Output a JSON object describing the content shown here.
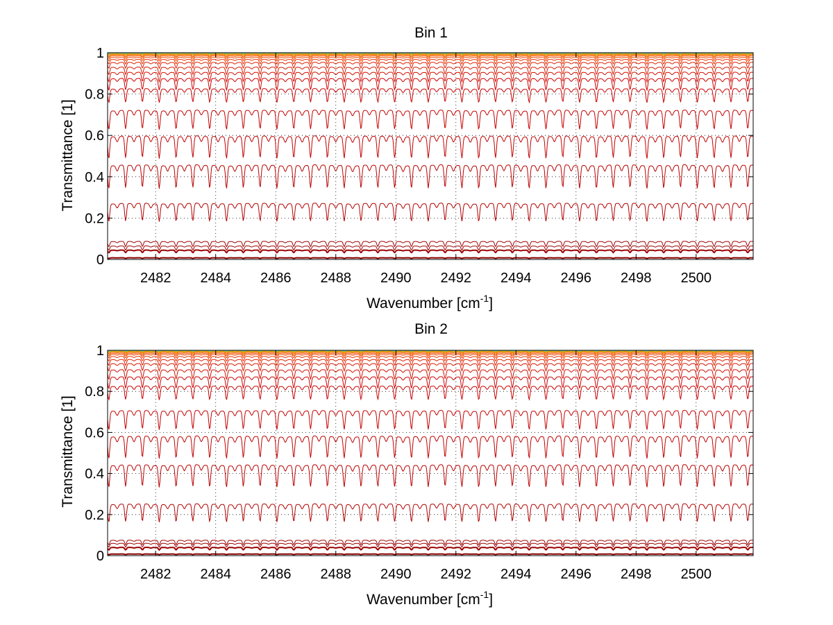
{
  "chart_data": [
    {
      "type": "line",
      "title": "Bin 1",
      "xlabel": "Wavenumber [cm",
      "xlabel_sup": "-1",
      "xlabel_end": "]",
      "ylabel": "Transmittance [1]",
      "xlim": [
        2480.4,
        2501.9
      ],
      "ylim": [
        0,
        1
      ],
      "grid": true,
      "x_ticks": [
        "2482",
        "2484",
        "2486",
        "2488",
        "2490",
        "2492",
        "2494",
        "2496",
        "2498",
        "2500"
      ],
      "y_ticks": [
        "0",
        "0.2",
        "0.4",
        "0.6",
        "0.8",
        "1"
      ],
      "line_period_cm": 0.56,
      "line_center_cm": 2481.0,
      "series": [
        {
          "baseline": 0.008,
          "depth": 0.003,
          "color": "#8b0000"
        },
        {
          "baseline": 0.045,
          "depth": 0.012,
          "color": "#9a0000"
        },
        {
          "baseline": 0.065,
          "depth": 0.02,
          "color": "#9a0000"
        },
        {
          "baseline": 0.087,
          "depth": 0.025,
          "color": "#a00000"
        },
        {
          "baseline": 0.27,
          "depth": 0.085,
          "color": "#b00000"
        },
        {
          "baseline": 0.455,
          "depth": 0.11,
          "color": "#b80000"
        },
        {
          "baseline": 0.595,
          "depth": 0.105,
          "color": "#c00000"
        },
        {
          "baseline": 0.72,
          "depth": 0.09,
          "color": "#c40000"
        },
        {
          "baseline": 0.825,
          "depth": 0.065,
          "color": "#c80000"
        },
        {
          "baseline": 0.875,
          "depth": 0.055,
          "color": "#cc0000"
        },
        {
          "baseline": 0.905,
          "depth": 0.045,
          "color": "#d01000"
        },
        {
          "baseline": 0.93,
          "depth": 0.035,
          "color": "#d41800"
        },
        {
          "baseline": 0.953,
          "depth": 0.028,
          "color": "#dd2000"
        },
        {
          "baseline": 0.968,
          "depth": 0.022,
          "color": "#e63000"
        },
        {
          "baseline": 0.978,
          "depth": 0.016,
          "color": "#ee4400"
        },
        {
          "baseline": 0.985,
          "depth": 0.012,
          "color": "#f25500"
        },
        {
          "baseline": 0.99,
          "depth": 0.01,
          "color": "#f06a00"
        },
        {
          "baseline": 0.993,
          "depth": 0.007,
          "color": "#f08000"
        },
        {
          "baseline": 0.996,
          "depth": 0.005,
          "color": "#e6b000"
        },
        {
          "baseline": 0.998,
          "depth": 0.004,
          "color": "#9fc830"
        },
        {
          "baseline": 0.999,
          "depth": 0.003,
          "color": "#4fb8c8"
        }
      ]
    },
    {
      "type": "line",
      "title": "Bin 2",
      "xlabel": "Wavenumber [cm",
      "xlabel_sup": "-1",
      "xlabel_end": "]",
      "ylabel": "Transmittance [1]",
      "xlim": [
        2480.4,
        2501.9
      ],
      "ylim": [
        0,
        1
      ],
      "grid": true,
      "x_ticks": [
        "2482",
        "2484",
        "2486",
        "2488",
        "2490",
        "2492",
        "2494",
        "2496",
        "2498",
        "2500"
      ],
      "y_ticks": [
        "0",
        "0.2",
        "0.4",
        "0.6",
        "0.8",
        "1"
      ],
      "line_period_cm": 0.56,
      "line_center_cm": 2481.0,
      "series": [
        {
          "baseline": 0.008,
          "depth": 0.003,
          "color": "#8b0000"
        },
        {
          "baseline": 0.04,
          "depth": 0.012,
          "color": "#9a0000"
        },
        {
          "baseline": 0.06,
          "depth": 0.018,
          "color": "#9a0000"
        },
        {
          "baseline": 0.075,
          "depth": 0.022,
          "color": "#a00000"
        },
        {
          "baseline": 0.25,
          "depth": 0.085,
          "color": "#b00000"
        },
        {
          "baseline": 0.44,
          "depth": 0.105,
          "color": "#b80000"
        },
        {
          "baseline": 0.58,
          "depth": 0.105,
          "color": "#c00000"
        },
        {
          "baseline": 0.705,
          "depth": 0.09,
          "color": "#c40000"
        },
        {
          "baseline": 0.825,
          "depth": 0.065,
          "color": "#c80000"
        },
        {
          "baseline": 0.87,
          "depth": 0.055,
          "color": "#cc0000"
        },
        {
          "baseline": 0.905,
          "depth": 0.045,
          "color": "#d01000"
        },
        {
          "baseline": 0.935,
          "depth": 0.035,
          "color": "#d41800"
        },
        {
          "baseline": 0.955,
          "depth": 0.028,
          "color": "#dd2000"
        },
        {
          "baseline": 0.97,
          "depth": 0.022,
          "color": "#e63000"
        },
        {
          "baseline": 0.98,
          "depth": 0.016,
          "color": "#ee4400"
        },
        {
          "baseline": 0.986,
          "depth": 0.012,
          "color": "#f25500"
        },
        {
          "baseline": 0.991,
          "depth": 0.01,
          "color": "#f06a00"
        },
        {
          "baseline": 0.994,
          "depth": 0.007,
          "color": "#f08000"
        },
        {
          "baseline": 0.996,
          "depth": 0.005,
          "color": "#e6b000"
        },
        {
          "baseline": 0.998,
          "depth": 0.004,
          "color": "#9fc830"
        },
        {
          "baseline": 0.999,
          "depth": 0.003,
          "color": "#4fb8c8"
        }
      ]
    }
  ]
}
